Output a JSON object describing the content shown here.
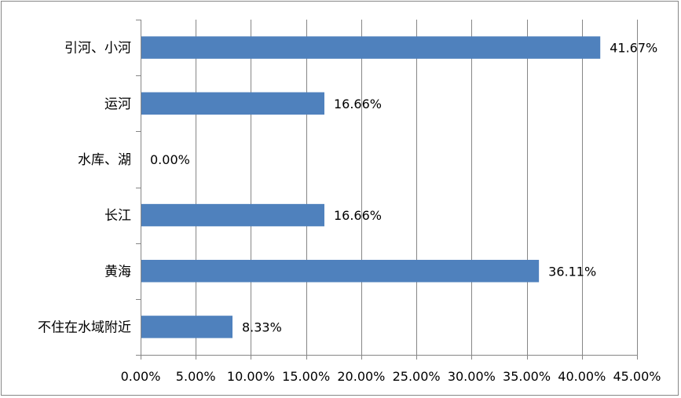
{
  "chart_data": {
    "type": "bar",
    "orientation": "horizontal",
    "title": "",
    "xlabel": "",
    "ylabel": "",
    "categories": [
      "引河、小河",
      "运河",
      "水库、湖",
      "长江",
      "黄海",
      "不住在水域附近"
    ],
    "values": [
      41.67,
      16.66,
      0.0,
      16.66,
      36.11,
      8.33
    ],
    "data_labels": [
      "41.67%",
      "16.66%",
      "0.00%",
      "16.66%",
      "36.11%",
      "8.33%"
    ],
    "xlim": [
      0,
      45
    ],
    "x_ticks": [
      0,
      5,
      10,
      15,
      20,
      25,
      30,
      35,
      40,
      45
    ],
    "x_tick_labels": [
      "0.00%",
      "5.00%",
      "10.00%",
      "15.00%",
      "20.00%",
      "25.00%",
      "30.00%",
      "35.00%",
      "40.00%",
      "45.00%"
    ],
    "grid": "vertical",
    "legend": "none",
    "colors": {
      "bar": "#4F81BD",
      "grid": "#868686",
      "axis": "#868686",
      "text": "#000000"
    }
  }
}
